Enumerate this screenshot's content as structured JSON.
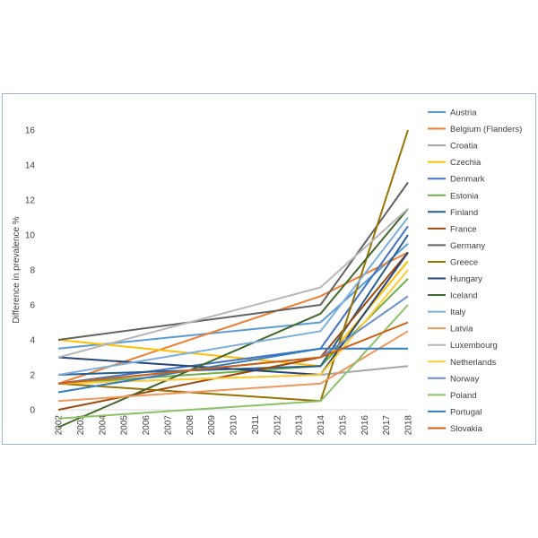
{
  "chart_data": {
    "type": "line",
    "title": "",
    "xlabel": "",
    "ylabel": "Difference in prevalence %",
    "categories": [
      "2002",
      "2003",
      "2004",
      "2005",
      "2006",
      "2007",
      "2008",
      "2009",
      "2010",
      "2011",
      "2012",
      "2013",
      "2014",
      "2015",
      "2016",
      "2017",
      "2018"
    ],
    "ylim": [
      0,
      16
    ],
    "yticks": [
      0,
      2,
      4,
      6,
      8,
      10,
      12,
      14,
      16
    ],
    "grid": false,
    "legend_position": "right",
    "series": [
      {
        "name": "Austria",
        "color": "#5b9bd5",
        "points": [
          [
            "2002",
            3.5
          ],
          [
            "2014",
            5.0
          ],
          [
            "2018",
            9.5
          ]
        ]
      },
      {
        "name": "Belgium (Flanders)",
        "color": "#ed7d31",
        "points": [
          [
            "2002",
            1.5
          ],
          [
            "2014",
            6.5
          ],
          [
            "2018",
            9.0
          ]
        ]
      },
      {
        "name": "Croatia",
        "color": "#a5a5a5",
        "points": [
          [
            "2002",
            1.5
          ],
          [
            "2014",
            2.0
          ],
          [
            "2018",
            2.5
          ]
        ]
      },
      {
        "name": "Czechia",
        "color": "#ffc000",
        "points": [
          [
            "2002",
            4.0
          ],
          [
            "2014",
            2.5
          ],
          [
            "2018",
            8.5
          ]
        ]
      },
      {
        "name": "Denmark",
        "color": "#4472c4",
        "points": [
          [
            "2002",
            1.5
          ],
          [
            "2014",
            3.5
          ],
          [
            "2018",
            10.5
          ]
        ]
      },
      {
        "name": "Estonia",
        "color": "#70ad47",
        "points": [
          [
            "2002",
            1.5
          ],
          [
            "2014",
            2.5
          ],
          [
            "2018",
            7.5
          ]
        ]
      },
      {
        "name": "Finland",
        "color": "#255e91",
        "points": [
          [
            "2002",
            2.0
          ],
          [
            "2014",
            2.5
          ],
          [
            "2018",
            10.0
          ]
        ]
      },
      {
        "name": "France",
        "color": "#9e480e",
        "points": [
          [
            "2002",
            0.0
          ],
          [
            "2014",
            3.0
          ],
          [
            "2018",
            9.0
          ]
        ]
      },
      {
        "name": "Germany",
        "color": "#636363",
        "points": [
          [
            "2002",
            4.0
          ],
          [
            "2014",
            6.0
          ],
          [
            "2018",
            13.0
          ]
        ]
      },
      {
        "name": "Greece",
        "color": "#997300",
        "points": [
          [
            "2002",
            1.5
          ],
          [
            "2014",
            0.5
          ],
          [
            "2018",
            16.0
          ]
        ]
      },
      {
        "name": "Hungary",
        "color": "#264478",
        "points": [
          [
            "2002",
            3.0
          ],
          [
            "2014",
            2.0
          ],
          [
            "2018",
            9.0
          ]
        ]
      },
      {
        "name": "Iceland",
        "color": "#43682b",
        "points": [
          [
            "2002",
            -1.0
          ],
          [
            "2014",
            5.5
          ],
          [
            "2018",
            11.5
          ]
        ]
      },
      {
        "name": "Italy",
        "color": "#7cafdd",
        "points": [
          [
            "2002",
            2.0
          ],
          [
            "2014",
            4.5
          ],
          [
            "2018",
            11.0
          ]
        ]
      },
      {
        "name": "Latvia",
        "color": "#f1975a",
        "points": [
          [
            "2002",
            0.5
          ],
          [
            "2014",
            1.5
          ],
          [
            "2018",
            4.5
          ]
        ]
      },
      {
        "name": "Luxembourg",
        "color": "#b7b7b7",
        "points": [
          [
            "2002",
            3.0
          ],
          [
            "2014",
            7.0
          ],
          [
            "2018",
            11.5
          ]
        ]
      },
      {
        "name": "Netherlands",
        "color": "#ffcd33",
        "points": [
          [
            "2002",
            1.5
          ],
          [
            "2014",
            2.0
          ],
          [
            "2018",
            8.0
          ]
        ]
      },
      {
        "name": "Norway",
        "color": "#698ed0",
        "points": [
          [
            "2002",
            1.5
          ],
          [
            "2014",
            3.0
          ],
          [
            "2018",
            6.5
          ]
        ]
      },
      {
        "name": "Poland",
        "color": "#8cc168",
        "points": [
          [
            "2002",
            -0.5
          ],
          [
            "2014",
            0.5
          ],
          [
            "2018",
            6.0
          ]
        ]
      },
      {
        "name": "Portugal",
        "color": "#327dc2",
        "points": [
          [
            "2002",
            1.0
          ],
          [
            "2014",
            3.5
          ],
          [
            "2018",
            3.5
          ]
        ]
      },
      {
        "name": "Slovakia",
        "color": "#d26012",
        "points": [
          [
            "2002",
            1.5
          ],
          [
            "2014",
            3.0
          ],
          [
            "2018",
            5.0
          ]
        ]
      }
    ]
  }
}
